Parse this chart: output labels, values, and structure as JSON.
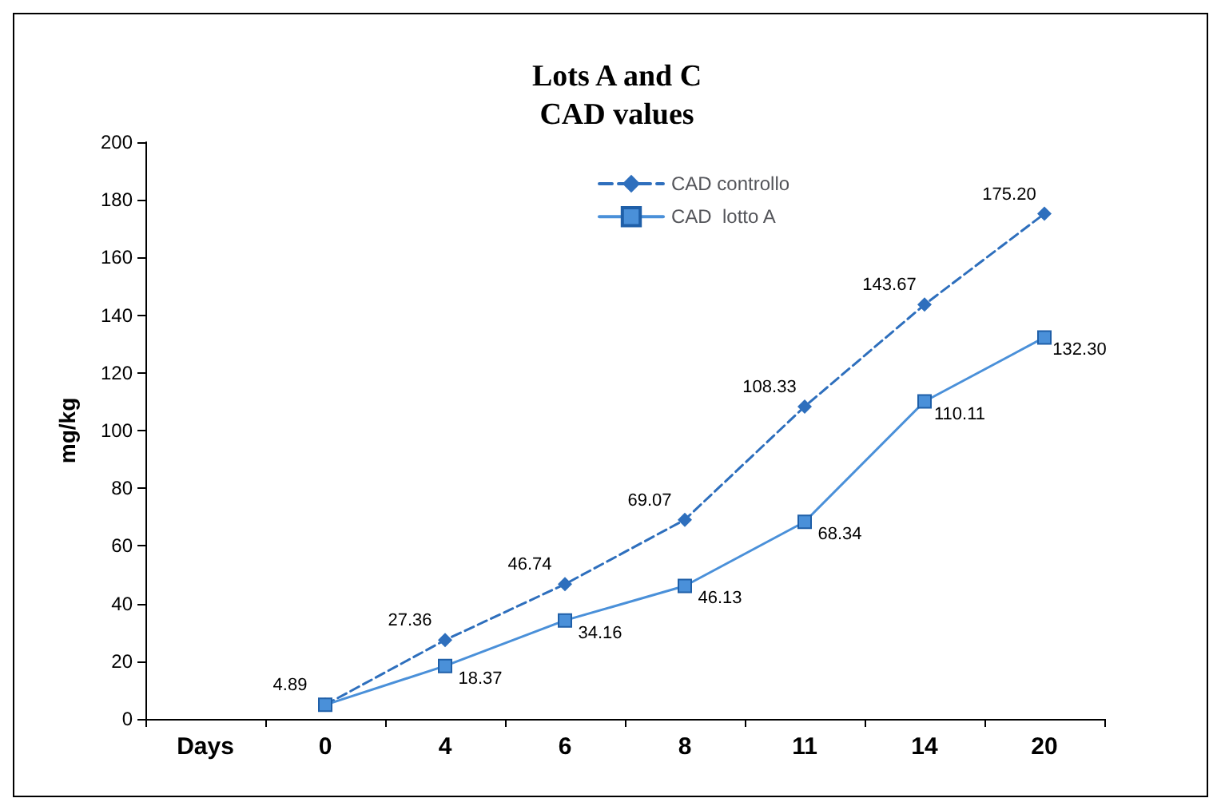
{
  "chart_data": {
    "type": "line",
    "title": "Lots A and C\nCAD values",
    "xlabel": "Days",
    "ylabel": "mg/kg",
    "categories": [
      null,
      "0",
      "4",
      "6",
      "8",
      "11",
      "14",
      "20"
    ],
    "series": [
      {
        "name": "CAD controllo",
        "color": "#2e6fbd",
        "values": [
          null,
          4.89,
          27.36,
          46.74,
          69.07,
          108.33,
          143.67,
          175.2
        ],
        "value_labels": [
          null,
          "4.89",
          "27.36",
          "46.74",
          "69.07",
          "108.33",
          "143.67",
          "175.20"
        ],
        "marker": "diamond",
        "line_style": "dashed"
      },
      {
        "name": "CAD  lotto A",
        "color": "#4a90d9",
        "values": [
          null,
          4.89,
          18.37,
          34.16,
          46.13,
          68.34,
          110.11,
          132.3
        ],
        "value_labels": [
          null,
          null,
          "18.37",
          "34.16",
          "46.13",
          "68.34",
          "110.11",
          "132.30"
        ],
        "marker": "square",
        "line_style": "solid"
      }
    ],
    "ylim": [
      0,
      200
    ],
    "yticks": [
      0,
      20,
      40,
      60,
      80,
      100,
      120,
      140,
      160,
      180,
      200
    ],
    "grid": false,
    "legend": "top"
  }
}
